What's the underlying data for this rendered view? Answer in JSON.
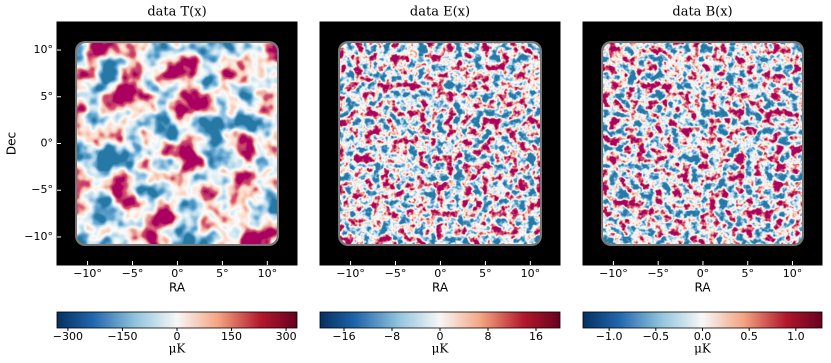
{
  "chart_data": [
    {
      "type": "heatmap",
      "title": "data T(x)",
      "xlabel": "RA",
      "ylabel": "Dec",
      "xlim": [
        -13.4,
        13.3
      ],
      "ylim": [
        -13,
        13
      ],
      "xticks": [
        {
          "value": -10,
          "label": "−10°"
        },
        {
          "value": -5,
          "label": "−5°"
        },
        {
          "value": 0,
          "label": "0°"
        },
        {
          "value": 5,
          "label": "5°"
        },
        {
          "value": 10,
          "label": "10°"
        }
      ],
      "yticks": [
        {
          "value": -10,
          "label": "−10°"
        },
        {
          "value": -5,
          "label": "−5°"
        },
        {
          "value": 0,
          "label": "0°"
        },
        {
          "value": 5,
          "label": "5°"
        },
        {
          "value": 10,
          "label": "10°"
        }
      ],
      "colormap": "RdBu_r",
      "colorbar_label": "μK",
      "clim": [
        -330,
        330
      ],
      "cticks": [
        {
          "value": -300,
          "label": "−300"
        },
        {
          "value": -150,
          "label": "−150"
        },
        0,
        150,
        300
      ]
    },
    {
      "type": "heatmap",
      "title": "data E(x)",
      "xlabel": "RA",
      "xlim": [
        -13.4,
        13.3
      ],
      "ylim": [
        -13,
        13
      ],
      "xticks": [
        {
          "value": -10,
          "label": "−10°"
        },
        {
          "value": -5,
          "label": "−5°"
        },
        {
          "value": 0,
          "label": "0°"
        },
        {
          "value": 5,
          "label": "5°"
        },
        {
          "value": 10,
          "label": "10°"
        }
      ],
      "colormap": "RdBu_r",
      "colorbar_label": "μK",
      "clim": [
        -20,
        20
      ],
      "cticks": [
        {
          "value": -16,
          "label": "−16"
        },
        {
          "value": -8,
          "label": "−8"
        },
        0,
        8,
        16
      ]
    },
    {
      "type": "heatmap",
      "title": "data B(x)",
      "xlabel": "RA",
      "xlim": [
        -13.4,
        13.3
      ],
      "ylim": [
        -13,
        13
      ],
      "xticks": [
        {
          "value": -10,
          "label": "−10°"
        },
        {
          "value": -5,
          "label": "−5°"
        },
        {
          "value": 0,
          "label": "0°"
        },
        {
          "value": 5,
          "label": "5°"
        },
        {
          "value": 10,
          "label": "10°"
        }
      ],
      "colormap": "RdBu_r",
      "colorbar_label": "μK",
      "clim": [
        -1.28,
        1.28
      ],
      "cticks": [
        {
          "value": -1.0,
          "label": "−1.0"
        },
        {
          "value": -0.5,
          "label": "−0.5"
        },
        {
          "value": 0,
          "label": "0.0"
        },
        {
          "value": 0.5,
          "label": "0.5"
        },
        {
          "value": 1.0,
          "label": "1.0"
        }
      ]
    }
  ]
}
